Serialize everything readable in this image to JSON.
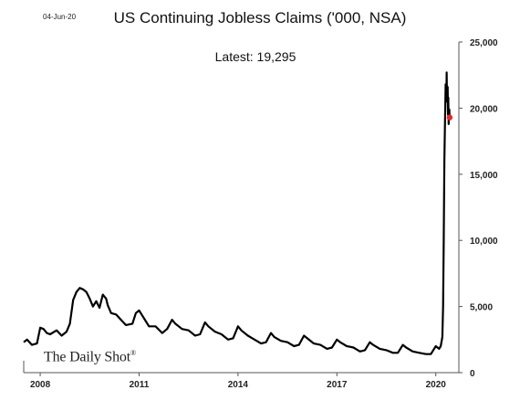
{
  "header": {
    "date": "04-Jun-20",
    "latest_label": "Latest:  19,295"
  },
  "watermark": {
    "text": "The Daily Shot",
    "mark": "®"
  },
  "colors": {
    "line": "#000000",
    "latest_point": "#e8262b",
    "frame": "#555555"
  },
  "chart_data": {
    "type": "line",
    "title": "US Continuing Jobless Claims ('000, NSA)",
    "xlabel": "",
    "ylabel": "",
    "x_ticks": [
      "2008",
      "2011",
      "2014",
      "2017",
      "2020"
    ],
    "y_ticks": [
      "0",
      "5,000",
      "10,000",
      "15,000",
      "20,000",
      "25,000"
    ],
    "y_tick_values": [
      0,
      5000,
      10000,
      15000,
      20000,
      25000
    ],
    "xlim": [
      2007.5,
      2020.7
    ],
    "ylim": [
      0,
      25000
    ],
    "y_axis_side": "right",
    "grid": false,
    "legend": "none",
    "latest_value": 19295,
    "series": [
      {
        "x": [
          2007.5,
          2007.6,
          2007.75,
          2007.9,
          2008.0,
          2008.1,
          2008.2,
          2008.3,
          2008.5,
          2008.65,
          2008.8,
          2008.9,
          2009.0,
          2009.1,
          2009.2,
          2009.3,
          2009.4,
          2009.5,
          2009.6,
          2009.7,
          2009.8,
          2009.9,
          2010.0,
          2010.05,
          2010.15,
          2010.3,
          2010.45,
          2010.6,
          2010.8,
          2010.9,
          2011.0,
          2011.1,
          2011.2,
          2011.3,
          2011.5,
          2011.7,
          2011.85,
          2012.0,
          2012.1,
          2012.3,
          2012.5,
          2012.7,
          2012.85,
          2013.0,
          2013.1,
          2013.3,
          2013.5,
          2013.7,
          2013.85,
          2014.0,
          2014.1,
          2014.3,
          2014.5,
          2014.7,
          2014.85,
          2015.0,
          2015.1,
          2015.3,
          2015.5,
          2015.7,
          2015.85,
          2016.0,
          2016.1,
          2016.3,
          2016.5,
          2016.7,
          2016.85,
          2017.0,
          2017.1,
          2017.3,
          2017.5,
          2017.7,
          2017.85,
          2018.0,
          2018.1,
          2018.3,
          2018.5,
          2018.7,
          2018.85,
          2019.0,
          2019.1,
          2019.3,
          2019.5,
          2019.7,
          2019.85,
          2020.0,
          2020.1,
          2020.15,
          2020.2,
          2020.22,
          2020.24,
          2020.26,
          2020.28,
          2020.3,
          2020.32,
          2020.33,
          2020.34,
          2020.36,
          2020.37,
          2020.38,
          2020.39,
          2020.41,
          2020.42
        ],
        "y": [
          2300,
          2500,
          2100,
          2200,
          3400,
          3300,
          3000,
          2900,
          3200,
          2800,
          3100,
          3700,
          5500,
          6100,
          6400,
          6300,
          6100,
          5600,
          5000,
          5400,
          4900,
          5900,
          5600,
          5100,
          4500,
          4400,
          4000,
          3600,
          3700,
          4500,
          4700,
          4300,
          3900,
          3500,
          3500,
          3000,
          3300,
          4000,
          3700,
          3300,
          3200,
          2800,
          2900,
          3800,
          3500,
          3100,
          2900,
          2500,
          2600,
          3500,
          3200,
          2800,
          2500,
          2200,
          2300,
          3000,
          2700,
          2400,
          2300,
          2000,
          2100,
          2800,
          2600,
          2200,
          2100,
          1800,
          1900,
          2500,
          2300,
          2000,
          1900,
          1600,
          1700,
          2300,
          2100,
          1800,
          1700,
          1500,
          1500,
          2100,
          1900,
          1600,
          1500,
          1400,
          1400,
          2000,
          1800,
          2000,
          2700,
          5000,
          10000,
          16000,
          19000,
          21800,
          20800,
          22700,
          20500,
          21600,
          19500,
          20800,
          18800,
          19900,
          19295
        ]
      }
    ]
  }
}
